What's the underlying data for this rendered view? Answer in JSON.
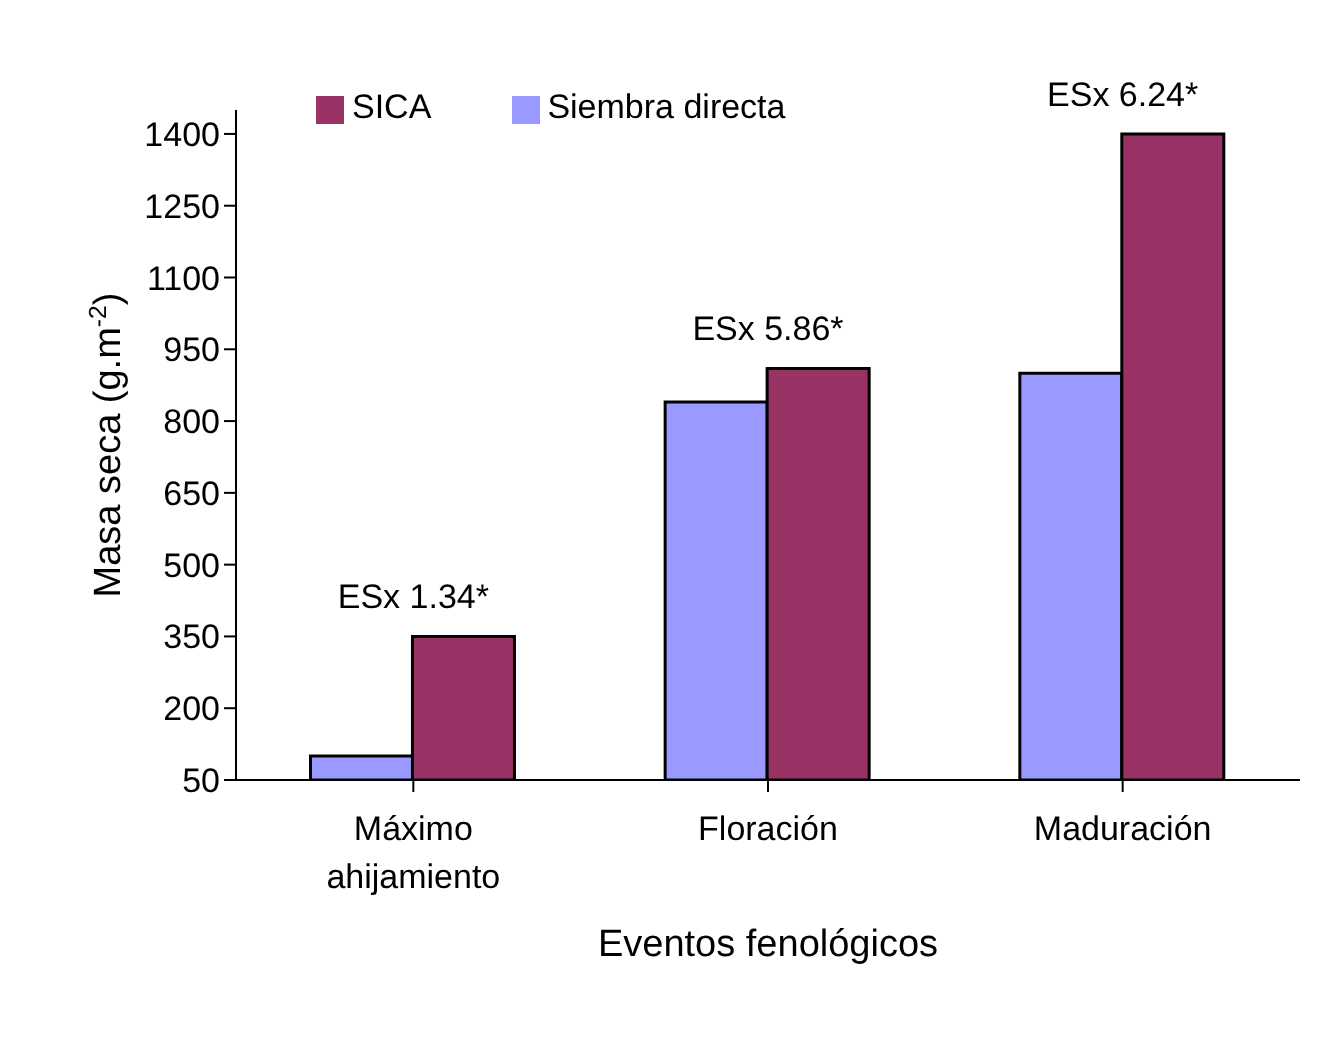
{
  "chart_data": {
    "type": "bar",
    "xlabel": "Eventos fenológicos",
    "ylabel": "Masa seca  (g.m$^{-2}$)",
    "categories": [
      "Máximo ahijamiento",
      "Floración",
      "Maduración"
    ],
    "series": [
      {
        "name": "Siembra directa",
        "color": "#9999ff",
        "values": [
          100,
          840,
          900
        ]
      },
      {
        "name": "SICA",
        "color": "#993366",
        "values": [
          350,
          910,
          1400
        ]
      }
    ],
    "ylim": [
      50,
      1450
    ],
    "yticks": [
      50,
      200,
      350,
      500,
      650,
      800,
      950,
      1100,
      1250,
      1400
    ],
    "grid": false,
    "legend": "top left",
    "annotations": [
      {
        "text": "ESx 1.34*",
        "x": "Máximo ahijamiento",
        "y": 350
      },
      {
        "text": "ESx 5.86*",
        "x": "Floración",
        "y": 910
      },
      {
        "text": "ESx 6.24*",
        "x": "Maduración",
        "y": 1400
      }
    ]
  }
}
